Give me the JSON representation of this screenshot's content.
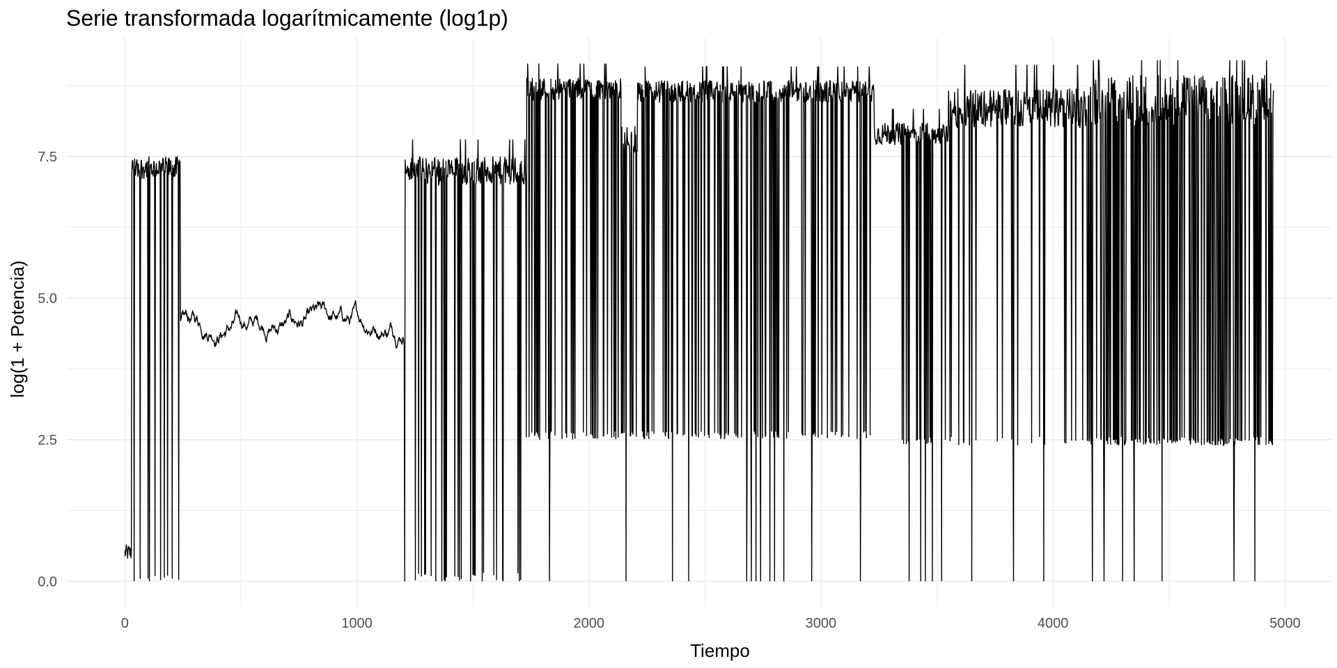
{
  "chart_data": {
    "type": "line",
    "title": "Serie transformada logarítmicamente (log1p)",
    "xlabel": "Tiempo",
    "ylabel": "log(1 + Potencia)",
    "xlim": [
      -250,
      5200
    ],
    "ylim": [
      -0.45,
      9.6
    ],
    "x_ticks": [
      0,
      1000,
      2000,
      3000,
      4000,
      5000
    ],
    "x_tick_labels": [
      "0",
      "1000",
      "2000",
      "3000",
      "4000",
      "5000"
    ],
    "y_ticks": [
      0,
      2.5,
      5,
      7.5
    ],
    "y_tick_labels": [
      "0.0",
      "2.5",
      "5.0",
      "7.5"
    ],
    "grid": true,
    "legend": "none",
    "line_color": "#000000",
    "grid_color": "#ebebeb",
    "series": [
      {
        "x_range": [
          0,
          4950
        ],
        "segments": [
          {
            "x": [
              0,
              30
            ],
            "level": 0.5,
            "noise": 0.15
          },
          {
            "x": [
              30,
              240
            ],
            "level": 7.3,
            "noise": 0.2
          },
          {
            "x": [
              240,
              1205
            ],
            "level": 4.55,
            "noise": 0.12
          },
          {
            "x": [
              1205,
              1730
            ],
            "level": 7.25,
            "noise": 0.25
          },
          {
            "x": [
              1730,
              2140
            ],
            "level": 8.7,
            "noise": 0.2
          },
          {
            "x": [
              2140,
              2210
            ],
            "level": 7.8,
            "noise": 0.25
          },
          {
            "x": [
              2210,
              3230
            ],
            "level": 8.65,
            "noise": 0.2
          },
          {
            "x": [
              3230,
              3550
            ],
            "level": 7.9,
            "noise": 0.2
          },
          {
            "x": [
              3550,
              4150
            ],
            "level": 8.35,
            "noise": 0.35
          },
          {
            "x": [
              4150,
              4950
            ],
            "level": 8.5,
            "noise": 0.45
          }
        ],
        "dips": [
          {
            "x": [
              40,
              240
            ],
            "min": 0.0,
            "every": 30
          },
          {
            "x": [
              1205,
              1730
            ],
            "min": 0.0,
            "every": 22
          },
          {
            "x": [
              1730,
              3230
            ],
            "min": 2.5,
            "every": 11
          },
          {
            "x": [
              3350,
              4150
            ],
            "min": 2.4,
            "every": 40
          },
          {
            "x": [
              4150,
              4950
            ],
            "min": 2.4,
            "every": 6
          }
        ],
        "zero_drops": [
          40,
          105,
          1205,
          1340,
          1365,
          1380,
          1490,
          1540,
          1630,
          1700,
          1830,
          2160,
          2360,
          2430,
          2680,
          2700,
          2720,
          2740,
          2780,
          2800,
          2840,
          2960,
          3170,
          3380,
          3430,
          3450,
          3480,
          3520,
          3650,
          3830,
          3960,
          4170,
          4220,
          4300,
          4350,
          4470,
          4780,
          4870
        ]
      }
    ]
  }
}
